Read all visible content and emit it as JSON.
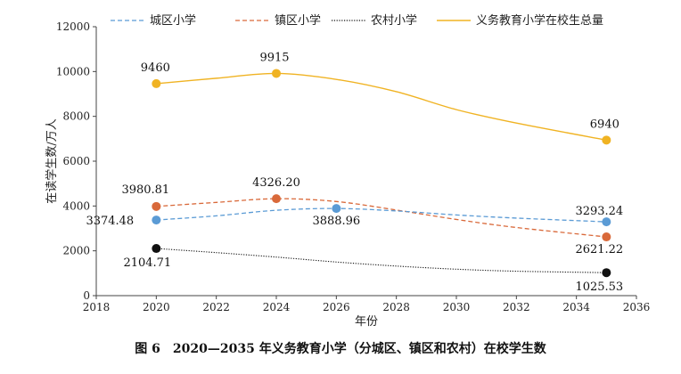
{
  "caption": "图 6　2020—2035 年义务教育小学（分城区、镇区和农村）在校学生数",
  "chart_data": {
    "type": "line",
    "xlabel": "年份",
    "ylabel": "在读学生数/万人",
    "xlim": [
      2018,
      2036
    ],
    "ylim": [
      0,
      12000
    ],
    "x_ticks": [
      "2018",
      "2020",
      "2022",
      "2024",
      "2026",
      "2028",
      "2030",
      "2032",
      "2034",
      "2036"
    ],
    "y_ticks": [
      "0",
      "2000",
      "4000",
      "6000",
      "8000",
      "10000",
      "12000"
    ],
    "legend_position": "top",
    "series": [
      {
        "name": "城区小学",
        "color": "#5B9BD5",
        "style": "dashed",
        "curve": [
          [
            2020,
            3374.48
          ],
          [
            2022,
            3560
          ],
          [
            2024,
            3810
          ],
          [
            2026,
            3888.96
          ],
          [
            2028,
            3780
          ],
          [
            2030,
            3600
          ],
          [
            2032,
            3460
          ],
          [
            2035,
            3293.24
          ]
        ],
        "markers": [
          {
            "x": 2020,
            "y": 3374.48,
            "label": "3374.48"
          },
          {
            "x": 2026,
            "y": 3888.96,
            "label": "3888.96"
          },
          {
            "x": 2035,
            "y": 3293.24,
            "label": "3293.24"
          }
        ]
      },
      {
        "name": "镇区小学",
        "color": "#D9693A",
        "style": "dashed",
        "curve": [
          [
            2020,
            3980.81
          ],
          [
            2022,
            4160
          ],
          [
            2024,
            4326.2
          ],
          [
            2026,
            4200
          ],
          [
            2028,
            3820
          ],
          [
            2030,
            3400
          ],
          [
            2032,
            3040
          ],
          [
            2035,
            2621.22
          ]
        ],
        "markers": [
          {
            "x": 2020,
            "y": 3980.81,
            "label": "3980.81"
          },
          {
            "x": 2024,
            "y": 4326.2,
            "label": "4326.20"
          },
          {
            "x": 2035,
            "y": 2621.22,
            "label": "2621.22"
          }
        ]
      },
      {
        "name": "农村小学",
        "color": "#111111",
        "style": "dotted",
        "curve": [
          [
            2020,
            2104.71
          ],
          [
            2022,
            1920
          ],
          [
            2024,
            1720
          ],
          [
            2026,
            1500
          ],
          [
            2028,
            1320
          ],
          [
            2030,
            1180
          ],
          [
            2032,
            1090
          ],
          [
            2035,
            1025.53
          ]
        ],
        "markers": [
          {
            "x": 2020,
            "y": 2104.71,
            "label": "2104.71"
          },
          {
            "x": 2035,
            "y": 1025.53,
            "label": "1025.53"
          }
        ]
      },
      {
        "name": "义务教育小学在校生总量",
        "color": "#F0B323",
        "style": "solid",
        "curve": [
          [
            2020,
            9460
          ],
          [
            2022,
            9700
          ],
          [
            2024,
            9915
          ],
          [
            2026,
            9650
          ],
          [
            2028,
            9100
          ],
          [
            2030,
            8300
          ],
          [
            2032,
            7700
          ],
          [
            2035,
            6940
          ]
        ],
        "markers": [
          {
            "x": 2020,
            "y": 9460,
            "label": "9460"
          },
          {
            "x": 2024,
            "y": 9915,
            "label": "9915"
          },
          {
            "x": 2035,
            "y": 6940,
            "label": "6940"
          }
        ]
      }
    ]
  }
}
